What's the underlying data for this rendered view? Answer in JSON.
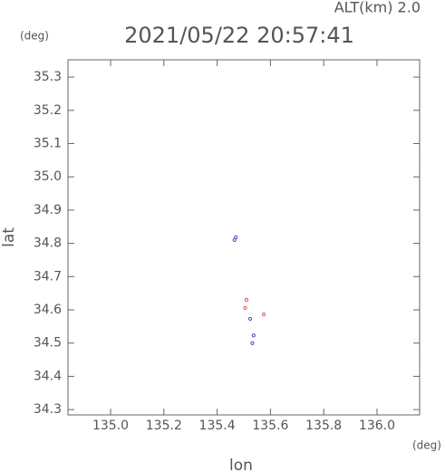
{
  "chart_data": {
    "type": "scatter",
    "title": "2021/05/22 20:57:41",
    "subtitle": "ALT(km) 2.0",
    "x_label": "lon",
    "x_unit": "(deg)",
    "y_label": "lat",
    "y_unit": "(deg)",
    "xlim": [
      134.84,
      136.16
    ],
    "ylim": [
      34.284,
      35.352
    ],
    "xticks": [
      {
        "value": 135,
        "label": "135.0"
      },
      135.2,
      135.4,
      135.6,
      135.8,
      {
        "value": 136,
        "label": "136.0"
      }
    ],
    "yticks": [
      34.3,
      34.4,
      34.5,
      34.6,
      34.7,
      34.8,
      34.9,
      {
        "value": 35,
        "label": "35.0"
      },
      35.1,
      35.2,
      35.3
    ],
    "series": [
      {
        "color": "#e0506a",
        "x": [
          135.51,
          135.575,
          135.505
        ],
        "values": [
          34.63,
          34.586,
          34.606
        ]
      },
      {
        "color": "#4646c8",
        "x": [
          135.47,
          135.465,
          135.524,
          135.537,
          135.532
        ],
        "values": [
          34.818,
          34.81,
          34.573,
          34.523,
          34.5
        ]
      }
    ]
  }
}
